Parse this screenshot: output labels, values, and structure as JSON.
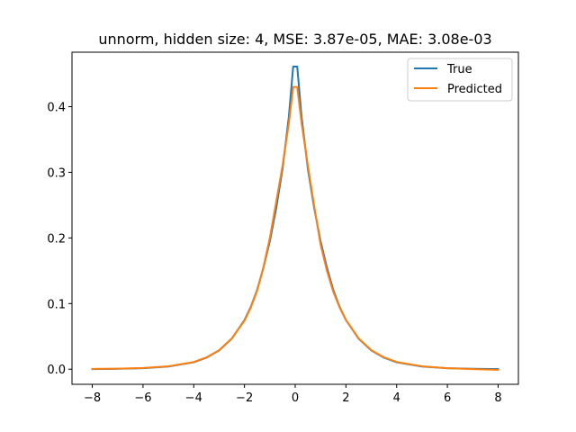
{
  "chart_data": {
    "type": "line",
    "title": "unnorm, hidden size: 4, MSE: 3.87e-05, MAE: 3.08e-03",
    "xlabel": "",
    "ylabel": "",
    "xlim": [
      -8.8,
      8.8
    ],
    "ylim": [
      -0.023,
      0.483
    ],
    "x_ticks": [
      -8,
      -6,
      -4,
      -2,
      0,
      2,
      4,
      6,
      8
    ],
    "x_tick_labels": [
      "−8",
      "−6",
      "−4",
      "−2",
      "0",
      "2",
      "4",
      "6",
      "8"
    ],
    "y_ticks": [
      0.0,
      0.1,
      0.2,
      0.3,
      0.4
    ],
    "y_tick_labels": [
      "0.0",
      "0.1",
      "0.2",
      "0.3",
      "0.4"
    ],
    "grid": false,
    "legend_position": "upper right",
    "series": [
      {
        "name": "True",
        "color": "#1f77b4",
        "x": [
          -8,
          -7,
          -6,
          -5,
          -4,
          -3.5,
          -3,
          -2.5,
          -2,
          -1.75,
          -1.5,
          -1.25,
          -1,
          -0.75,
          -0.5,
          -0.25,
          -0.08,
          0.08,
          0.25,
          0.5,
          0.75,
          1,
          1.25,
          1.5,
          1.75,
          2,
          2.5,
          3,
          3.5,
          4,
          5,
          6,
          7,
          8
        ],
        "y": [
          0.0002,
          0.0006,
          0.0015,
          0.004,
          0.0105,
          0.0175,
          0.0285,
          0.0465,
          0.075,
          0.095,
          0.121,
          0.155,
          0.195,
          0.245,
          0.305,
          0.385,
          0.461,
          0.461,
          0.385,
          0.305,
          0.245,
          0.195,
          0.155,
          0.121,
          0.095,
          0.075,
          0.0465,
          0.0285,
          0.0175,
          0.0105,
          0.004,
          0.0015,
          0.0006,
          0.0002
        ]
      },
      {
        "name": "Predicted",
        "color": "#ff7f0e",
        "x": [
          -8,
          -7,
          -6,
          -5,
          -4,
          -3.5,
          -3,
          -2.5,
          -2,
          -1.75,
          -1.5,
          -1.25,
          -1,
          -0.75,
          -0.5,
          -0.25,
          -0.08,
          0.08,
          0.25,
          0.5,
          0.75,
          1,
          1.25,
          1.5,
          1.75,
          2,
          2.5,
          3,
          3.5,
          4,
          5,
          6,
          7,
          8
        ],
        "y": [
          0.0005,
          0.0008,
          0.0018,
          0.0045,
          0.011,
          0.018,
          0.029,
          0.047,
          0.074,
          0.094,
          0.12,
          0.156,
          0.2,
          0.255,
          0.31,
          0.375,
          0.43,
          0.43,
          0.375,
          0.31,
          0.248,
          0.19,
          0.15,
          0.118,
          0.094,
          0.075,
          0.047,
          0.029,
          0.018,
          0.011,
          0.0045,
          0.0015,
          0.0002,
          -0.001
        ]
      }
    ]
  }
}
